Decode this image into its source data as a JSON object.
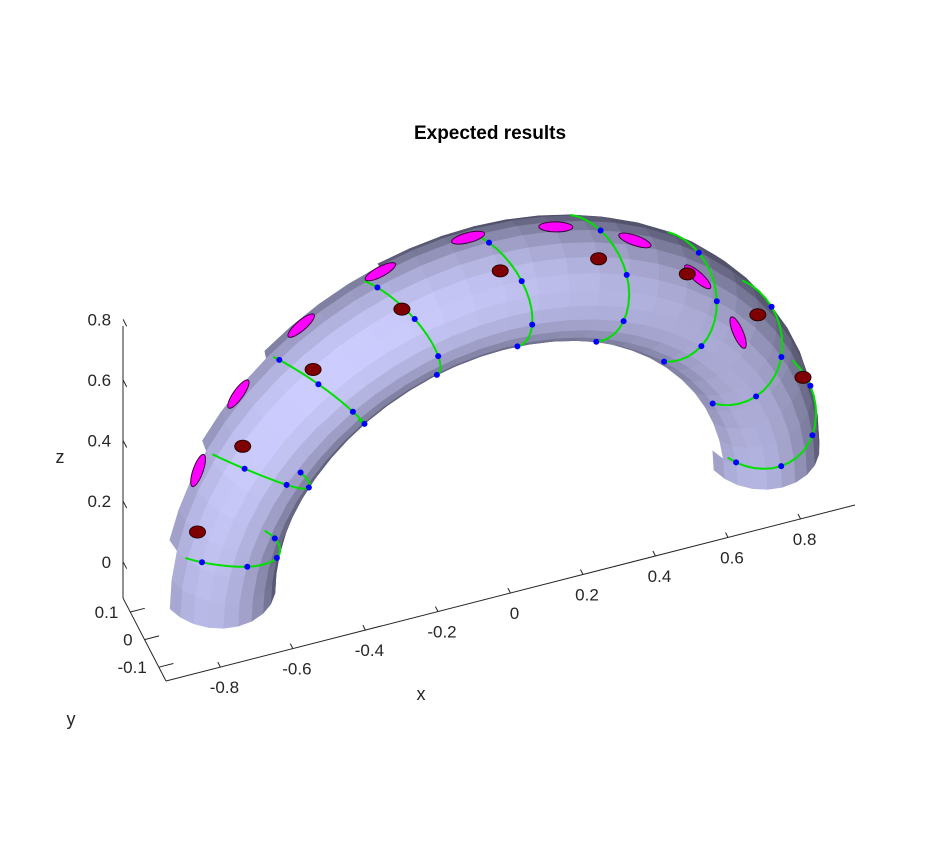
{
  "chart_data": {
    "type": "surface3d",
    "title": "Expected results",
    "xlabel": "x",
    "ylabel": "y",
    "zlabel": "z",
    "x_ticks": [
      "-0.8",
      "-0.6",
      "-0.4",
      "-0.2",
      "0",
      "0.2",
      "0.4",
      "0.6",
      "0.8"
    ],
    "y_ticks": [
      "-0.1",
      "0",
      "0.1"
    ],
    "z_ticks": [
      "0",
      "0.2",
      "0.4",
      "0.6",
      "0.8"
    ],
    "xlim": [
      -0.95,
      0.95
    ],
    "ylim": [
      -0.15,
      0.15
    ],
    "zlim": [
      -0.12,
      0.9
    ],
    "grid": false,
    "surface": {
      "shape": "half-torus",
      "major_radius": 0.75,
      "tube_radius": 0.15,
      "color": "#c8c8ff",
      "shade_dark": "#3c3c50"
    },
    "series": [
      {
        "marker": "ring-curve",
        "color": "#00e000",
        "rings": 9
      },
      {
        "marker": "point",
        "color": "#0000ff"
      },
      {
        "marker": "ellipse-top",
        "color": "#ff00ff"
      },
      {
        "marker": "ellipse-side",
        "color": "#7f0000"
      }
    ]
  }
}
